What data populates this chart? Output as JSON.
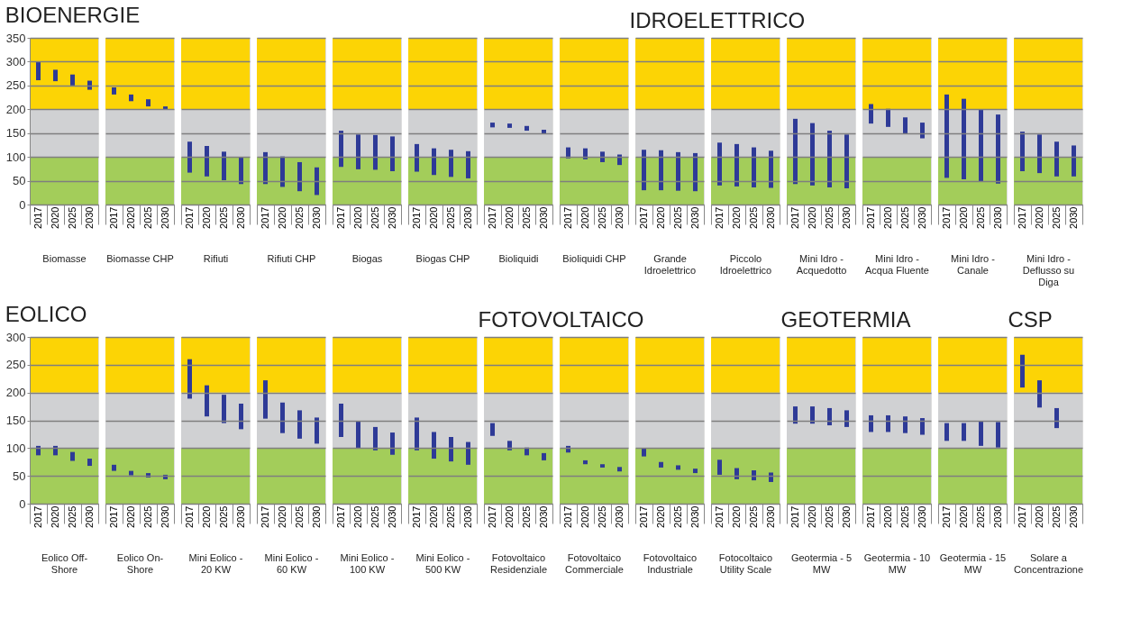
{
  "chart_data": [
    {
      "type": "bar",
      "title": "BIOENERGIE",
      "xlabel": "Biomasse",
      "categories": [
        "2017",
        "2020",
        "2025",
        "2030"
      ],
      "base": [
        261,
        259,
        250,
        241
      ],
      "values": [
        38,
        24,
        23,
        19
      ],
      "color": "#2e3a97",
      "ylim": [
        0,
        350
      ],
      "yticks": [
        0,
        50,
        100,
        150,
        200,
        250,
        300,
        350
      ],
      "grid": "y",
      "bands": [
        {
          "axis": "y",
          "from": 0,
          "to": 100,
          "color": "#a3cd5a"
        },
        {
          "axis": "y",
          "from": 100,
          "to": 200,
          "color": "#d0d1d3"
        },
        {
          "axis": "y",
          "from": 200,
          "to": 350,
          "color": "#fcd405"
        }
      ]
    },
    {
      "type": "bar",
      "xlabel": "Biomasse CHP",
      "categories": [
        "2017",
        "2020",
        "2025",
        "2030"
      ],
      "base": [
        231,
        217,
        206,
        200
      ],
      "values": [
        15,
        14,
        15,
        6
      ],
      "color": "#2e3a97",
      "ylim": [
        0,
        350
      ],
      "yticks": [
        0,
        50,
        100,
        150,
        200,
        250,
        300,
        350
      ],
      "grid": "y",
      "tick_labels": "x",
      "bands": [
        {
          "axis": "y",
          "from": 0,
          "to": 100,
          "color": "#a3cd5a"
        },
        {
          "axis": "y",
          "from": 100,
          "to": 200,
          "color": "#d0d1d3"
        },
        {
          "axis": "y",
          "from": 200,
          "to": 350,
          "color": "#fcd405"
        }
      ]
    },
    {
      "type": "bar",
      "xlabel": "Rifiuti",
      "categories": [
        "2017",
        "2020",
        "2025",
        "2030"
      ],
      "base": [
        67,
        59,
        51,
        43
      ],
      "values": [
        65,
        64,
        60,
        57
      ],
      "color": "#2e3a97",
      "ylim": [
        0,
        350
      ],
      "yticks": [
        0,
        50,
        100,
        150,
        200,
        250,
        300,
        350
      ],
      "grid": "y",
      "tick_labels": "x",
      "bands": [
        {
          "axis": "y",
          "from": 0,
          "to": 100,
          "color": "#a3cd5a"
        },
        {
          "axis": "y",
          "from": 100,
          "to": 200,
          "color": "#d0d1d3"
        },
        {
          "axis": "y",
          "from": 200,
          "to": 350,
          "color": "#fcd405"
        }
      ]
    },
    {
      "type": "bar",
      "xlabel": "Rifiuti CHP",
      "categories": [
        "2017",
        "2020",
        "2025",
        "2030"
      ],
      "base": [
        43,
        37,
        28,
        20
      ],
      "values": [
        67,
        64,
        61,
        58
      ],
      "color": "#2e3a97",
      "ylim": [
        0,
        350
      ],
      "yticks": [
        0,
        50,
        100,
        150,
        200,
        250,
        300,
        350
      ],
      "grid": "y",
      "tick_labels": "x",
      "bands": [
        {
          "axis": "y",
          "from": 0,
          "to": 100,
          "color": "#a3cd5a"
        },
        {
          "axis": "y",
          "from": 100,
          "to": 200,
          "color": "#d0d1d3"
        },
        {
          "axis": "y",
          "from": 200,
          "to": 350,
          "color": "#fcd405"
        }
      ]
    },
    {
      "type": "bar",
      "xlabel": "Biogas",
      "categories": [
        "2017",
        "2020",
        "2025",
        "2030"
      ],
      "base": [
        79,
        74,
        73,
        70
      ],
      "values": [
        76,
        73,
        73,
        73
      ],
      "color": "#2e3a97",
      "ylim": [
        0,
        350
      ],
      "yticks": [
        0,
        50,
        100,
        150,
        200,
        250,
        300,
        350
      ],
      "grid": "y",
      "tick_labels": "x",
      "bands": [
        {
          "axis": "y",
          "from": 0,
          "to": 100,
          "color": "#a3cd5a"
        },
        {
          "axis": "y",
          "from": 100,
          "to": 200,
          "color": "#d0d1d3"
        },
        {
          "axis": "y",
          "from": 200,
          "to": 350,
          "color": "#fcd405"
        }
      ]
    },
    {
      "type": "bar",
      "xlabel": "Biogas CHP",
      "categories": [
        "2017",
        "2020",
        "2025",
        "2030"
      ],
      "base": [
        69,
        62,
        58,
        55
      ],
      "values": [
        58,
        56,
        57,
        57
      ],
      "color": "#2e3a97",
      "ylim": [
        0,
        350
      ],
      "yticks": [
        0,
        50,
        100,
        150,
        200,
        250,
        300,
        350
      ],
      "grid": "y",
      "tick_labels": "x",
      "bands": [
        {
          "axis": "y",
          "from": 0,
          "to": 100,
          "color": "#a3cd5a"
        },
        {
          "axis": "y",
          "from": 100,
          "to": 200,
          "color": "#d0d1d3"
        },
        {
          "axis": "y",
          "from": 200,
          "to": 350,
          "color": "#fcd405"
        }
      ]
    },
    {
      "type": "bar",
      "xlabel": "Bioliquidi",
      "categories": [
        "2017",
        "2020",
        "2025",
        "2030"
      ],
      "base": [
        162,
        161,
        155,
        148
      ],
      "values": [
        10,
        9,
        10,
        9
      ],
      "color": "#2e3a97",
      "ylim": [
        0,
        350
      ],
      "yticks": [
        0,
        50,
        100,
        150,
        200,
        250,
        300,
        350
      ],
      "grid": "y",
      "tick_labels": "x",
      "bands": [
        {
          "axis": "y",
          "from": 0,
          "to": 100,
          "color": "#a3cd5a"
        },
        {
          "axis": "y",
          "from": 100,
          "to": 200,
          "color": "#d0d1d3"
        },
        {
          "axis": "y",
          "from": 200,
          "to": 350,
          "color": "#fcd405"
        }
      ]
    },
    {
      "type": "bar",
      "xlabel": "Bioliquidi CHP",
      "categories": [
        "2017",
        "2020",
        "2025",
        "2030"
      ],
      "base": [
        97,
        95,
        89,
        83
      ],
      "values": [
        23,
        23,
        22,
        22
      ],
      "color": "#2e3a97",
      "ylim": [
        0,
        350
      ],
      "yticks": [
        0,
        50,
        100,
        150,
        200,
        250,
        300,
        350
      ],
      "grid": "y",
      "tick_labels": "x",
      "bands": [
        {
          "axis": "y",
          "from": 0,
          "to": 100,
          "color": "#a3cd5a"
        },
        {
          "axis": "y",
          "from": 100,
          "to": 200,
          "color": "#d0d1d3"
        },
        {
          "axis": "y",
          "from": 200,
          "to": 350,
          "color": "#fcd405"
        }
      ]
    },
    {
      "type": "bar",
      "title": "IDROELETTRICO",
      "xlabel": "Grande Idroelettrico",
      "categories": [
        "2017",
        "2020",
        "2025",
        "2030"
      ],
      "base": [
        30,
        30,
        29,
        28
      ],
      "values": [
        85,
        84,
        81,
        80
      ],
      "color": "#2e3a97",
      "ylim": [
        0,
        350
      ],
      "yticks": [
        0,
        50,
        100,
        150,
        200,
        250,
        300,
        350
      ],
      "grid": "y",
      "tick_labels": "x",
      "bands": [
        {
          "axis": "y",
          "from": 0,
          "to": 100,
          "color": "#a3cd5a"
        },
        {
          "axis": "y",
          "from": 100,
          "to": 200,
          "color": "#d0d1d3"
        },
        {
          "axis": "y",
          "from": 200,
          "to": 350,
          "color": "#fcd405"
        }
      ]
    },
    {
      "type": "bar",
      "xlabel": "Piccolo Idroelettrico",
      "categories": [
        "2017",
        "2020",
        "2025",
        "2030"
      ],
      "base": [
        40,
        38,
        36,
        35
      ],
      "values": [
        90,
        89,
        84,
        78
      ],
      "color": "#2e3a97",
      "ylim": [
        0,
        350
      ],
      "yticks": [
        0,
        50,
        100,
        150,
        200,
        250,
        300,
        350
      ],
      "grid": "y",
      "tick_labels": "x",
      "bands": [
        {
          "axis": "y",
          "from": 0,
          "to": 100,
          "color": "#a3cd5a"
        },
        {
          "axis": "y",
          "from": 100,
          "to": 200,
          "color": "#d0d1d3"
        },
        {
          "axis": "y",
          "from": 200,
          "to": 350,
          "color": "#fcd405"
        }
      ]
    },
    {
      "type": "bar",
      "xlabel": "Mini Idro - Acquedotto",
      "categories": [
        "2017",
        "2020",
        "2025",
        "2030"
      ],
      "base": [
        43,
        40,
        36,
        34
      ],
      "values": [
        137,
        131,
        119,
        113
      ],
      "color": "#2e3a97",
      "ylim": [
        0,
        350
      ],
      "yticks": [
        0,
        50,
        100,
        150,
        200,
        250,
        300,
        350
      ],
      "grid": "y",
      "tick_labels": "x",
      "bands": [
        {
          "axis": "y",
          "from": 0,
          "to": 100,
          "color": "#a3cd5a"
        },
        {
          "axis": "y",
          "from": 100,
          "to": 200,
          "color": "#d0d1d3"
        },
        {
          "axis": "y",
          "from": 200,
          "to": 350,
          "color": "#fcd405"
        }
      ]
    },
    {
      "type": "bar",
      "xlabel": "Mini Idro - Acqua Fluente",
      "categories": [
        "2017",
        "2020",
        "2025",
        "2030"
      ],
      "base": [
        170,
        163,
        148,
        139
      ],
      "values": [
        41,
        38,
        35,
        33
      ],
      "color": "#2e3a97",
      "ylim": [
        0,
        350
      ],
      "yticks": [
        0,
        50,
        100,
        150,
        200,
        250,
        300,
        350
      ],
      "grid": "y",
      "tick_labels": "x",
      "bands": [
        {
          "axis": "y",
          "from": 0,
          "to": 100,
          "color": "#a3cd5a"
        },
        {
          "axis": "y",
          "from": 100,
          "to": 200,
          "color": "#d0d1d3"
        },
        {
          "axis": "y",
          "from": 200,
          "to": 350,
          "color": "#fcd405"
        }
      ]
    },
    {
      "type": "bar",
      "xlabel": "Mini Idro - Canale",
      "categories": [
        "2017",
        "2020",
        "2025",
        "2030"
      ],
      "base": [
        56,
        53,
        48,
        44
      ],
      "values": [
        175,
        169,
        152,
        145
      ],
      "color": "#2e3a97",
      "ylim": [
        0,
        350
      ],
      "yticks": [
        0,
        50,
        100,
        150,
        200,
        250,
        300,
        350
      ],
      "grid": "y",
      "tick_labels": "x",
      "bands": [
        {
          "axis": "y",
          "from": 0,
          "to": 100,
          "color": "#a3cd5a"
        },
        {
          "axis": "y",
          "from": 100,
          "to": 200,
          "color": "#d0d1d3"
        },
        {
          "axis": "y",
          "from": 200,
          "to": 350,
          "color": "#fcd405"
        }
      ]
    },
    {
      "type": "bar",
      "xlabel": "Mini Idro - Deflusso su Diga",
      "categories": [
        "2017",
        "2020",
        "2025",
        "2030"
      ],
      "base": [
        70,
        66,
        59,
        59
      ],
      "values": [
        83,
        81,
        73,
        65
      ],
      "color": "#2e3a97",
      "ylim": [
        0,
        350
      ],
      "yticks": [
        0,
        50,
        100,
        150,
        200,
        250,
        300,
        350
      ],
      "grid": "y",
      "tick_labels": "x",
      "bands": [
        {
          "axis": "y",
          "from": 0,
          "to": 100,
          "color": "#a3cd5a"
        },
        {
          "axis": "y",
          "from": 100,
          "to": 200,
          "color": "#d0d1d3"
        },
        {
          "axis": "y",
          "from": 200,
          "to": 350,
          "color": "#fcd405"
        }
      ]
    },
    {
      "type": "bar",
      "title": "EOLICO",
      "xlabel": "Eolico Off-Shore",
      "categories": [
        "2017",
        "2020",
        "2025",
        "2030"
      ],
      "base": [
        87,
        87,
        77,
        68
      ],
      "values": [
        17,
        17,
        16,
        13
      ],
      "color": "#2e3a97",
      "ylim": [
        0,
        300
      ],
      "yticks": [
        0,
        50,
        100,
        150,
        200,
        250,
        300
      ],
      "grid": "y",
      "bands": [
        {
          "axis": "y",
          "from": 0,
          "to": 100,
          "color": "#a3cd5a"
        },
        {
          "axis": "y",
          "from": 100,
          "to": 200,
          "color": "#d0d1d3"
        },
        {
          "axis": "y",
          "from": 200,
          "to": 300,
          "color": "#fcd405"
        }
      ]
    },
    {
      "type": "bar",
      "xlabel": "Eolico On-Shore",
      "categories": [
        "2017",
        "2020",
        "2025",
        "2030"
      ],
      "base": [
        59,
        51,
        47,
        44
      ],
      "values": [
        11,
        8,
        8,
        8
      ],
      "color": "#2e3a97",
      "ylim": [
        0,
        300
      ],
      "yticks": [
        0,
        50,
        100,
        150,
        200,
        250,
        300
      ],
      "grid": "y",
      "tick_labels": "x",
      "bands": [
        {
          "axis": "y",
          "from": 0,
          "to": 100,
          "color": "#a3cd5a"
        },
        {
          "axis": "y",
          "from": 100,
          "to": 200,
          "color": "#d0d1d3"
        },
        {
          "axis": "y",
          "from": 200,
          "to": 300,
          "color": "#fcd405"
        }
      ]
    },
    {
      "type": "bar",
      "xlabel": "Mini Eolico - 20 KW",
      "categories": [
        "2017",
        "2020",
        "2025",
        "2030"
      ],
      "base": [
        189,
        157,
        145,
        134
      ],
      "values": [
        71,
        56,
        51,
        46
      ],
      "color": "#2e3a97",
      "ylim": [
        0,
        300
      ],
      "yticks": [
        0,
        50,
        100,
        150,
        200,
        250,
        300
      ],
      "grid": "y",
      "tick_labels": "x",
      "bands": [
        {
          "axis": "y",
          "from": 0,
          "to": 100,
          "color": "#a3cd5a"
        },
        {
          "axis": "y",
          "from": 100,
          "to": 200,
          "color": "#d0d1d3"
        },
        {
          "axis": "y",
          "from": 200,
          "to": 300,
          "color": "#fcd405"
        }
      ]
    },
    {
      "type": "bar",
      "xlabel": "Mini Eolico - 60 KW",
      "categories": [
        "2017",
        "2020",
        "2025",
        "2030"
      ],
      "base": [
        153,
        127,
        117,
        108
      ],
      "values": [
        69,
        55,
        51,
        47
      ],
      "color": "#2e3a97",
      "ylim": [
        0,
        300
      ],
      "yticks": [
        0,
        50,
        100,
        150,
        200,
        250,
        300
      ],
      "grid": "y",
      "tick_labels": "x",
      "bands": [
        {
          "axis": "y",
          "from": 0,
          "to": 100,
          "color": "#a3cd5a"
        },
        {
          "axis": "y",
          "from": 100,
          "to": 200,
          "color": "#d0d1d3"
        },
        {
          "axis": "y",
          "from": 200,
          "to": 300,
          "color": "#fcd405"
        }
      ]
    },
    {
      "type": "bar",
      "xlabel": "Mini Eolico - 100 KW",
      "categories": [
        "2017",
        "2020",
        "2025",
        "2030"
      ],
      "base": [
        120,
        100,
        96,
        88
      ],
      "values": [
        60,
        49,
        42,
        40
      ],
      "color": "#2e3a97",
      "ylim": [
        0,
        300
      ],
      "yticks": [
        0,
        50,
        100,
        150,
        200,
        250,
        300
      ],
      "grid": "y",
      "tick_labels": "x",
      "bands": [
        {
          "axis": "y",
          "from": 0,
          "to": 100,
          "color": "#a3cd5a"
        },
        {
          "axis": "y",
          "from": 100,
          "to": 200,
          "color": "#d0d1d3"
        },
        {
          "axis": "y",
          "from": 200,
          "to": 300,
          "color": "#fcd405"
        }
      ]
    },
    {
      "type": "bar",
      "xlabel": "Mini Eolico - 500 KW",
      "categories": [
        "2017",
        "2020",
        "2025",
        "2030"
      ],
      "base": [
        96,
        81,
        76,
        70
      ],
      "values": [
        59,
        48,
        44,
        41
      ],
      "color": "#2e3a97",
      "ylim": [
        0,
        300
      ],
      "yticks": [
        0,
        50,
        100,
        150,
        200,
        250,
        300
      ],
      "grid": "y",
      "tick_labels": "x",
      "bands": [
        {
          "axis": "y",
          "from": 0,
          "to": 100,
          "color": "#a3cd5a"
        },
        {
          "axis": "y",
          "from": 100,
          "to": 200,
          "color": "#d0d1d3"
        },
        {
          "axis": "y",
          "from": 200,
          "to": 300,
          "color": "#fcd405"
        }
      ]
    },
    {
      "type": "bar",
      "title": "FOTOVOLTAICO",
      "xlabel": "Fotovoltaico Residenziale",
      "categories": [
        "2017",
        "2020",
        "2025",
        "2030"
      ],
      "base": [
        122,
        96,
        87,
        78
      ],
      "values": [
        23,
        17,
        14,
        13
      ],
      "color": "#2e3a97",
      "ylim": [
        0,
        300
      ],
      "yticks": [
        0,
        50,
        100,
        150,
        200,
        250,
        300
      ],
      "grid": "y",
      "tick_labels": "x",
      "bands": [
        {
          "axis": "y",
          "from": 0,
          "to": 100,
          "color": "#a3cd5a"
        },
        {
          "axis": "y",
          "from": 100,
          "to": 200,
          "color": "#d0d1d3"
        },
        {
          "axis": "y",
          "from": 200,
          "to": 300,
          "color": "#fcd405"
        }
      ]
    },
    {
      "type": "bar",
      "xlabel": "Fotovoltaico Commerciale",
      "categories": [
        "2017",
        "2020",
        "2025",
        "2030"
      ],
      "base": [
        92,
        71,
        65,
        58
      ],
      "values": [
        12,
        7,
        6,
        8
      ],
      "color": "#2e3a97",
      "ylim": [
        0,
        300
      ],
      "yticks": [
        0,
        50,
        100,
        150,
        200,
        250,
        300
      ],
      "grid": "y",
      "tick_labels": "x",
      "bands": [
        {
          "axis": "y",
          "from": 0,
          "to": 100,
          "color": "#a3cd5a"
        },
        {
          "axis": "y",
          "from": 100,
          "to": 200,
          "color": "#d0d1d3"
        },
        {
          "axis": "y",
          "from": 200,
          "to": 300,
          "color": "#fcd405"
        }
      ]
    },
    {
      "type": "bar",
      "xlabel": "Fotovoltaico Industriale",
      "categories": [
        "2017",
        "2020",
        "2025",
        "2030"
      ],
      "base": [
        85,
        65,
        61,
        55
      ],
      "values": [
        14,
        10,
        8,
        8
      ],
      "color": "#2e3a97",
      "ylim": [
        0,
        300
      ],
      "yticks": [
        0,
        50,
        100,
        150,
        200,
        250,
        300
      ],
      "grid": "y",
      "tick_labels": "x",
      "bands": [
        {
          "axis": "y",
          "from": 0,
          "to": 100,
          "color": "#a3cd5a"
        },
        {
          "axis": "y",
          "from": 100,
          "to": 200,
          "color": "#d0d1d3"
        },
        {
          "axis": "y",
          "from": 200,
          "to": 300,
          "color": "#fcd405"
        }
      ]
    },
    {
      "type": "bar",
      "xlabel": "Fotocoltaico Utility Scale",
      "categories": [
        "2017",
        "2020",
        "2025",
        "2030"
      ],
      "base": [
        52,
        44,
        42,
        39
      ],
      "values": [
        27,
        20,
        18,
        17
      ],
      "color": "#2e3a97",
      "ylim": [
        0,
        300
      ],
      "yticks": [
        0,
        50,
        100,
        150,
        200,
        250,
        300
      ],
      "grid": "y",
      "tick_labels": "x",
      "bands": [
        {
          "axis": "y",
          "from": 0,
          "to": 100,
          "color": "#a3cd5a"
        },
        {
          "axis": "y",
          "from": 100,
          "to": 200,
          "color": "#d0d1d3"
        },
        {
          "axis": "y",
          "from": 200,
          "to": 300,
          "color": "#fcd405"
        }
      ]
    },
    {
      "type": "bar",
      "title": "GEOTERMIA",
      "xlabel": "Geotermia - 5 MW",
      "categories": [
        "2017",
        "2020",
        "2025",
        "2030"
      ],
      "base": [
        144,
        144,
        141,
        138
      ],
      "values": [
        31,
        31,
        31,
        30
      ],
      "color": "#2e3a97",
      "ylim": [
        0,
        300
      ],
      "yticks": [
        0,
        50,
        100,
        150,
        200,
        250,
        300
      ],
      "grid": "y",
      "tick_labels": "x",
      "bands": [
        {
          "axis": "y",
          "from": 0,
          "to": 100,
          "color": "#a3cd5a"
        },
        {
          "axis": "y",
          "from": 100,
          "to": 200,
          "color": "#d0d1d3"
        },
        {
          "axis": "y",
          "from": 200,
          "to": 300,
          "color": "#fcd405"
        }
      ]
    },
    {
      "type": "bar",
      "xlabel": "Geotermia - 10 MW",
      "categories": [
        "2017",
        "2020",
        "2025",
        "2030"
      ],
      "base": [
        129,
        129,
        127,
        124
      ],
      "values": [
        30,
        30,
        30,
        30
      ],
      "color": "#2e3a97",
      "ylim": [
        0,
        300
      ],
      "yticks": [
        0,
        50,
        100,
        150,
        200,
        250,
        300
      ],
      "grid": "y",
      "tick_labels": "x",
      "bands": [
        {
          "axis": "y",
          "from": 0,
          "to": 100,
          "color": "#a3cd5a"
        },
        {
          "axis": "y",
          "from": 100,
          "to": 200,
          "color": "#d0d1d3"
        },
        {
          "axis": "y",
          "from": 200,
          "to": 300,
          "color": "#fcd405"
        }
      ]
    },
    {
      "type": "bar",
      "xlabel": "Geotermia - 15 MW",
      "categories": [
        "2017",
        "2020",
        "2025",
        "2030"
      ],
      "base": [
        113,
        113,
        104,
        101
      ],
      "values": [
        32,
        32,
        45,
        46
      ],
      "color": "#2e3a97",
      "ylim": [
        0,
        300
      ],
      "yticks": [
        0,
        50,
        100,
        150,
        200,
        250,
        300
      ],
      "grid": "y",
      "tick_labels": "x",
      "bands": [
        {
          "axis": "y",
          "from": 0,
          "to": 100,
          "color": "#a3cd5a"
        },
        {
          "axis": "y",
          "from": 100,
          "to": 200,
          "color": "#d0d1d3"
        },
        {
          "axis": "y",
          "from": 200,
          "to": 300,
          "color": "#fcd405"
        }
      ]
    },
    {
      "type": "bar",
      "title": "CSP",
      "xlabel": "Solare a Concentrazione",
      "categories": [
        "2017",
        "2020",
        "2025",
        "2030"
      ],
      "base": [
        209,
        173,
        136,
        null
      ],
      "values": [
        59,
        49,
        36,
        null
      ],
      "color": "#2e3a97",
      "ylim": [
        0,
        300
      ],
      "yticks": [
        0,
        50,
        100,
        150,
        200,
        250,
        300
      ],
      "grid": "y",
      "tick_labels": "x",
      "bands": [
        {
          "axis": "y",
          "from": 0,
          "to": 100,
          "color": "#a3cd5a"
        },
        {
          "axis": "y",
          "from": 100,
          "to": 200,
          "color": "#d0d1d3"
        },
        {
          "axis": "y",
          "from": 200,
          "to": 300,
          "color": "#fcd405"
        }
      ]
    }
  ]
}
